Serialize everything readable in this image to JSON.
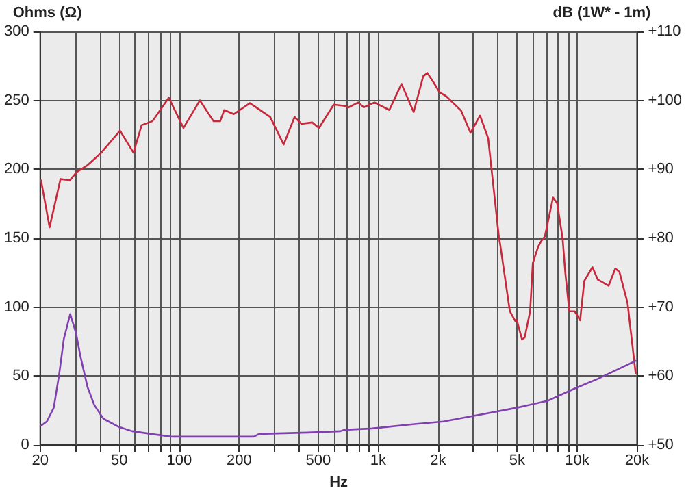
{
  "chart_data": {
    "type": "line",
    "xlabel": "Hz",
    "ylabel": "Ohms (Ω)",
    "y2label": "dB (1W* - 1m)",
    "log": "x",
    "grid": true,
    "marker": "none",
    "line_style": "solid",
    "xlim": [
      20,
      20000
    ],
    "xticks": [
      20,
      {
        "value": 30,
        "label": null
      },
      {
        "value": 40,
        "label": null
      },
      50,
      {
        "value": 60,
        "label": null
      },
      {
        "value": 70,
        "label": null
      },
      {
        "value": 80,
        "label": null
      },
      {
        "value": 90,
        "label": null
      },
      100,
      200,
      {
        "value": 300,
        "label": null
      },
      {
        "value": 400,
        "label": null
      },
      500,
      {
        "value": 600,
        "label": null
      },
      {
        "value": 700,
        "label": null
      },
      {
        "value": 800,
        "label": null
      },
      {
        "value": 900,
        "label": null
      },
      {
        "value": 1000,
        "label": "1k"
      },
      {
        "value": 2000,
        "label": "2k"
      },
      {
        "value": 3000,
        "label": null
      },
      {
        "value": 4000,
        "label": null
      },
      {
        "value": 5000,
        "label": "5k"
      },
      {
        "value": 6000,
        "label": null
      },
      {
        "value": 7000,
        "label": null
      },
      {
        "value": 8000,
        "label": null
      },
      {
        "value": 9000,
        "label": null
      },
      {
        "value": 10000,
        "label": "10k"
      },
      {
        "value": 20000,
        "label": "20k"
      }
    ],
    "ylim": [
      0,
      300
    ],
    "yticks": [
      0,
      50,
      100,
      150,
      200,
      250,
      300
    ],
    "y2lim": [
      50,
      110
    ],
    "y2ticks": [
      {
        "value": 50,
        "label": "+50"
      },
      {
        "value": 60,
        "label": "+60"
      },
      {
        "value": 70,
        "label": "+70"
      },
      {
        "value": 80,
        "label": "+80"
      },
      {
        "value": 90,
        "label": "+90"
      },
      {
        "value": 100,
        "label": "+100"
      },
      {
        "value": 110,
        "label": "+110"
      }
    ],
    "series": [
      {
        "color": "#c8283c",
        "axis": "y2",
        "x": [
          20.2,
          22.3,
          25.3,
          28.2,
          30.5,
          34.6,
          40.5,
          50.4,
          58.9,
          64.7,
          73.4,
          88.6,
          105,
          127,
          148.6,
          160.7,
          168.4,
          188,
          226.6,
          286.6,
          335,
          380,
          411,
          466,
          504,
          598,
          679,
          711,
          794,
          846,
          958,
          1138,
          1212,
          1310,
          1508,
          1684,
          1764,
          1910,
          2032,
          2198,
          2612,
          2912,
          3250,
          3572,
          4046,
          4110,
          4590,
          4886,
          4966,
          5286,
          5450,
          5804,
          5988,
          6372,
          6574,
          6888,
          7568,
          7936,
          8450,
          8714,
          9138,
          9726,
          10352,
          10866,
          11940,
          12700,
          14390,
          15560,
          16320,
          17920,
          19680
        ],
        "values": [
          88.4,
          81.6,
          88.6,
          88.4,
          89.6,
          90.6,
          92.4,
          95.6,
          92.4,
          96.4,
          97,
          100.4,
          96,
          100,
          97,
          97,
          98.6,
          98,
          99.6,
          97.6,
          93.6,
          97.6,
          96.6,
          96.8,
          96,
          99.4,
          99.2,
          99,
          99.7,
          99,
          99.7,
          98.6,
          100.3,
          102.4,
          98.3,
          103.5,
          104,
          102.5,
          101.2,
          100.6,
          98.5,
          95.3,
          97.8,
          94.5,
          80.1,
          79,
          69.4,
          68,
          68.2,
          65.3,
          65.6,
          69.4,
          76.4,
          78.8,
          79.5,
          80.3,
          85.9,
          85.1,
          80,
          75.1,
          69.4,
          69.4,
          68.1,
          73.8,
          75.8,
          74,
          73.1,
          75.6,
          75.1,
          70.6,
          60.4
        ]
      },
      {
        "color": "#8040b0",
        "x": [
          20.2,
          21.6,
          23.4,
          24.9,
          26.3,
          28.3,
          30.3,
          31.9,
          34.6,
          37.4,
          41.6,
          49.9,
          58,
          72,
          92.3,
          237,
          252,
          445,
          646,
          679,
          933,
          1490,
          2124,
          3250,
          4966,
          7100,
          9726,
          12700,
          19680
        ],
        "values": [
          14,
          17,
          27,
          51,
          77,
          95,
          81,
          64,
          42,
          29,
          19,
          13,
          10,
          8,
          6,
          6,
          8,
          9,
          10,
          11,
          12,
          15,
          17,
          22,
          27,
          32,
          41,
          48,
          61
        ]
      }
    ]
  }
}
